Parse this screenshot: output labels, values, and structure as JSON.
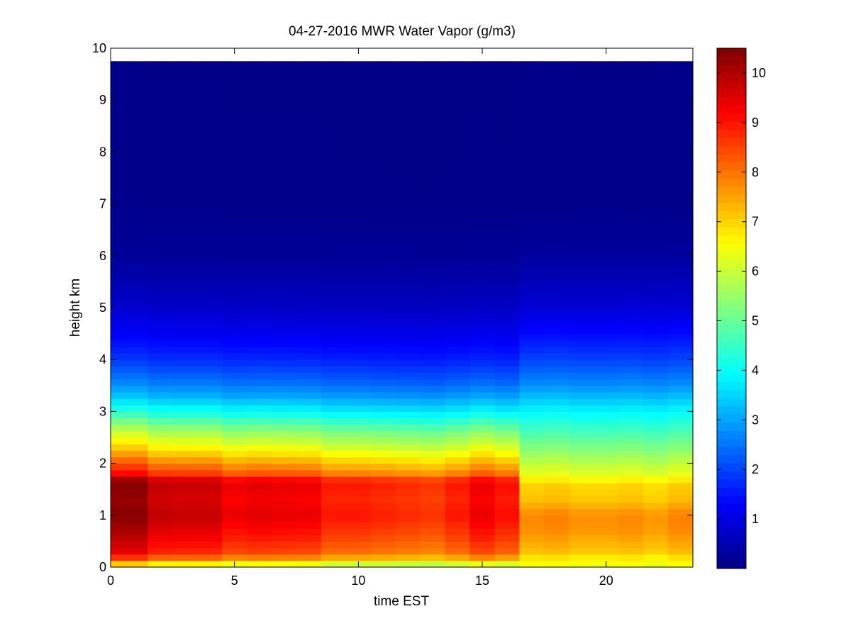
{
  "chart_data": {
    "type": "heatmap",
    "title": "04-27-2016 MWR Water Vapor (g/m3)",
    "xlabel": "time EST",
    "ylabel": "height km",
    "xlim": [
      0,
      23.5
    ],
    "ylim": [
      0,
      10
    ],
    "x_ticks": [
      "0",
      "5",
      "10",
      "15",
      "20"
    ],
    "y_ticks": [
      "0",
      "1",
      "2",
      "3",
      "4",
      "5",
      "6",
      "7",
      "8",
      "9",
      "10"
    ],
    "colormap": "jet",
    "clim": [
      0,
      10.5
    ],
    "colorbar_ticks": [
      "1",
      "2",
      "3",
      "4",
      "5",
      "6",
      "7",
      "8",
      "9",
      "10"
    ],
    "data_top_km": 9.75,
    "time_edges": [
      0,
      1.5,
      2.5,
      3.5,
      4.5,
      5.5,
      6.5,
      7.5,
      8.5,
      9.5,
      10.5,
      11.5,
      12.5,
      13.5,
      14.5,
      15.5,
      16.5,
      17.5,
      18.5,
      19.5,
      20.5,
      21.5,
      22.5,
      23.5
    ],
    "regimes": [
      {
        "from": 0,
        "to": 16.5,
        "profile": [
          [
            0.0,
            6.5
          ],
          [
            0.1,
            7.0
          ],
          [
            0.2,
            8.5
          ],
          [
            0.3,
            9.0
          ],
          [
            0.6,
            9.5
          ],
          [
            1.0,
            10.0
          ],
          [
            1.3,
            9.8
          ],
          [
            1.65,
            10.0
          ],
          [
            1.8,
            8.8
          ],
          [
            2.0,
            8.0
          ],
          [
            2.3,
            6.8
          ],
          [
            2.6,
            5.8
          ],
          [
            2.8,
            5.0
          ],
          [
            3.0,
            4.2
          ],
          [
            3.3,
            3.2
          ],
          [
            3.6,
            2.5
          ],
          [
            4.0,
            1.8
          ],
          [
            4.5,
            1.2
          ],
          [
            5.0,
            0.8
          ],
          [
            5.5,
            0.5
          ],
          [
            6.0,
            0.25
          ],
          [
            7.0,
            0.12
          ],
          [
            10.0,
            0.1
          ]
        ]
      },
      {
        "from": 16.5,
        "to": 23.5,
        "profile": [
          [
            0.0,
            6.5
          ],
          [
            0.1,
            6.5
          ],
          [
            0.3,
            7.2
          ],
          [
            0.7,
            7.7
          ],
          [
            1.0,
            7.8
          ],
          [
            1.3,
            7.2
          ],
          [
            1.6,
            7.0
          ],
          [
            1.8,
            6.3
          ],
          [
            2.1,
            5.7
          ],
          [
            2.5,
            4.9
          ],
          [
            3.0,
            3.9
          ],
          [
            3.5,
            2.8
          ],
          [
            4.0,
            2.0
          ],
          [
            4.5,
            1.4
          ],
          [
            5.0,
            0.9
          ],
          [
            5.5,
            0.6
          ],
          [
            6.0,
            0.3
          ],
          [
            7.0,
            0.12
          ],
          [
            10.0,
            0.1
          ]
        ]
      }
    ],
    "column_offsets": [
      0.45,
      -0.15,
      -0.2,
      -0.2,
      -0.6,
      -0.5,
      -0.55,
      -0.6,
      -1.0,
      -1.0,
      -1.1,
      -1.2,
      -1.3,
      -1.0,
      -0.6,
      -0.9,
      0.0,
      0.1,
      -0.1,
      -0.1,
      0.0,
      -0.2,
      0.1
    ]
  }
}
